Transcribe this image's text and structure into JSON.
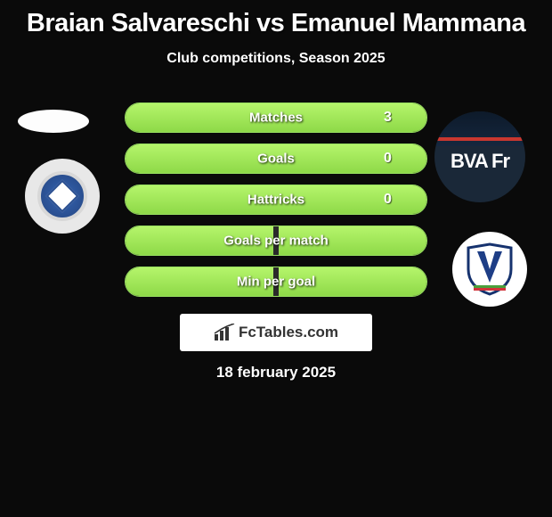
{
  "title": "Braian Salvareschi vs Emanuel Mammana",
  "subtitle": "Club competitions, Season 2025",
  "date": "18 february 2025",
  "branding": {
    "text": "FcTables.com"
  },
  "colors": {
    "bar_fill": "#8ed948",
    "bar_fill_light": "#b5f56b",
    "bar_border": "#98e060",
    "bar_empty": "#2a2a2a",
    "text": "#ffffff",
    "background": "#0a0a0a",
    "branding_bg": "#ffffff",
    "branding_text": "#333333"
  },
  "player_left": {
    "name": "Braian Salvareschi",
    "club": "Godoy Cruz",
    "club_colors": {
      "primary": "#2a4f90",
      "secondary": "#ffffff",
      "ring": "#d8d8d8"
    }
  },
  "player_right": {
    "name": "Emanuel Mammana",
    "club": "Velez Sarsfield",
    "shirt_sponsor": "BVA Fr",
    "club_colors": {
      "primary": "#16326e",
      "secondary": "#ffffff",
      "v_fill": "#1e3e86"
    }
  },
  "stats": [
    {
      "label": "Matches",
      "left_value": "",
      "right_value": "3",
      "left_pct": 0,
      "right_pct": 100
    },
    {
      "label": "Goals",
      "left_value": "",
      "right_value": "0",
      "left_pct": 0,
      "right_pct": 100
    },
    {
      "label": "Hattricks",
      "left_value": "",
      "right_value": "0",
      "left_pct": 0,
      "right_pct": 100
    },
    {
      "label": "Goals per match",
      "left_value": "",
      "right_value": "",
      "left_pct": 49,
      "right_pct": 49
    },
    {
      "label": "Min per goal",
      "left_value": "",
      "right_value": "",
      "left_pct": 49,
      "right_pct": 49
    }
  ]
}
